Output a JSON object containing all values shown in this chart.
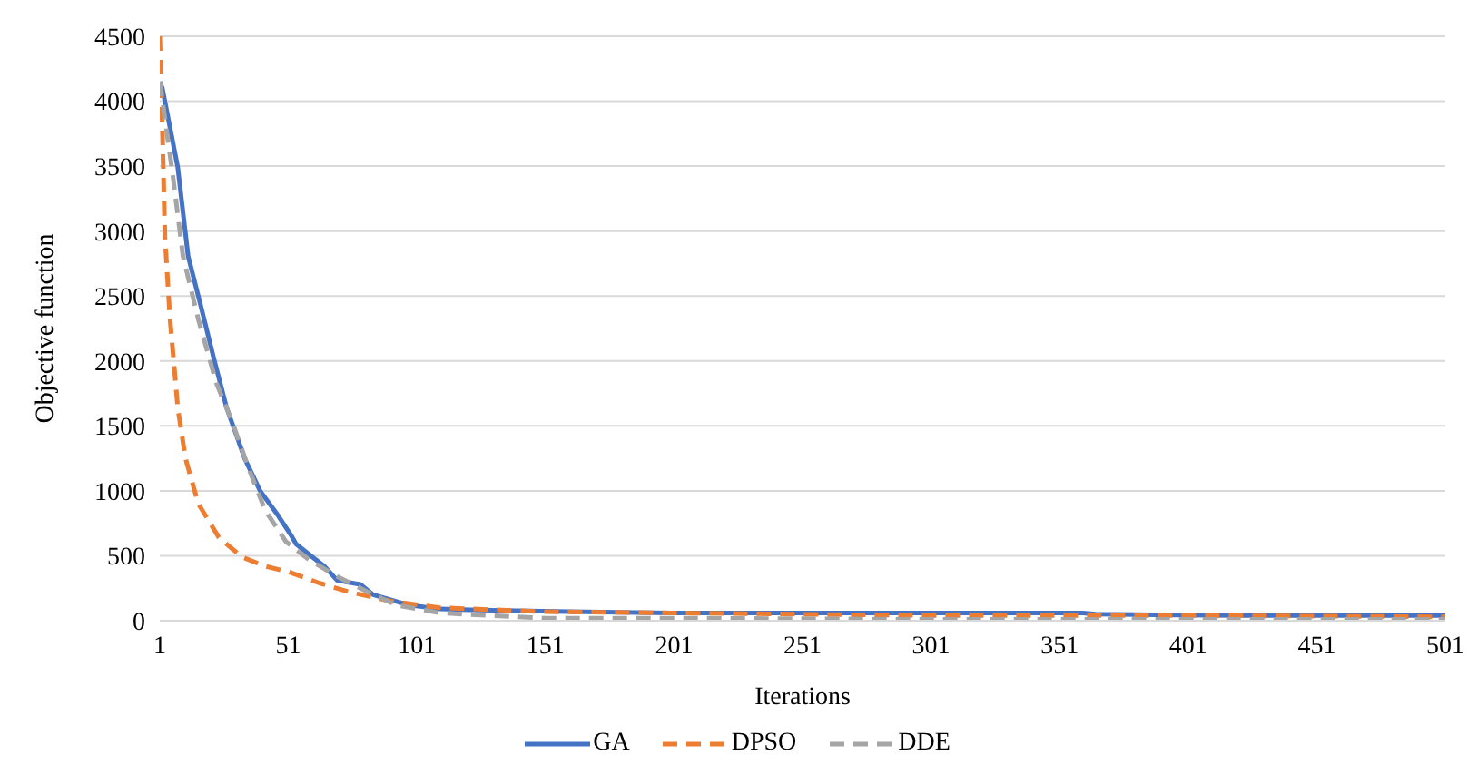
{
  "chart_data": {
    "type": "line",
    "xlabel": "Iterations",
    "ylabel": "Objective function",
    "xlim": [
      1,
      501
    ],
    "xticks": [
      1,
      51,
      101,
      151,
      201,
      251,
      301,
      351,
      401,
      451,
      501
    ],
    "ylim": [
      0,
      4500
    ],
    "yticks": [
      0,
      500,
      1000,
      1500,
      2000,
      2500,
      3000,
      3500,
      4000,
      4500
    ],
    "grid": "y",
    "legend": "bottom",
    "marker": "none",
    "series": [
      {
        "name": "GA",
        "color": "#4472c4",
        "line_style": "solid",
        "x": [
          1,
          2,
          8,
          12,
          17,
          22,
          27,
          34,
          40,
          47,
          52,
          54,
          61,
          65,
          70,
          79,
          84,
          98,
          110,
          130,
          160,
          200,
          250,
          300,
          360,
          365,
          420,
          501
        ],
        "values": [
          4150,
          4100,
          3490,
          2810,
          2420,
          2020,
          1640,
          1250,
          1000,
          810,
          660,
          590,
          480,
          420,
          310,
          280,
          200,
          120,
          90,
          80,
          70,
          60,
          60,
          60,
          60,
          50,
          40,
          40
        ]
      },
      {
        "name": "DPSO",
        "color": "#ed7d31",
        "line_style": "dashed",
        "x": [
          1,
          2,
          3,
          5,
          8,
          11,
          16,
          24,
          33,
          42,
          52,
          63,
          75,
          91,
          110,
          150,
          200,
          250,
          300,
          400,
          501
        ],
        "values": [
          4500,
          3790,
          2960,
          2320,
          1640,
          1250,
          900,
          640,
          490,
          420,
          370,
          290,
          220,
          150,
          100,
          70,
          60,
          50,
          40,
          40,
          30
        ]
      },
      {
        "name": "DDE",
        "color": "#a5a5a5",
        "line_style": "dashed",
        "x": [
          1,
          6,
          10,
          16,
          23,
          29,
          36,
          42,
          50,
          59,
          70,
          82,
          93,
          110,
          130,
          150,
          200,
          300,
          400,
          501
        ],
        "values": [
          4150,
          3440,
          2810,
          2320,
          1830,
          1540,
          1150,
          850,
          610,
          470,
          340,
          220,
          120,
          60,
          40,
          20,
          20,
          10,
          10,
          10
        ]
      }
    ]
  }
}
